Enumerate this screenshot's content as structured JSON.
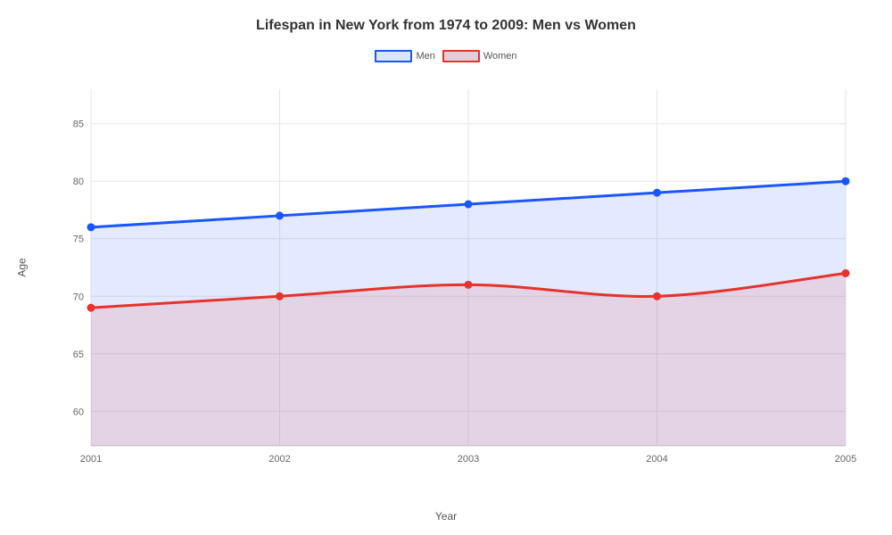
{
  "chart": {
    "type": "area-line",
    "title": "Lifespan in New York from 1974 to 2009: Men vs Women",
    "title_fontsize": 16,
    "title_fontweight": "700",
    "title_color": "#333333",
    "xlabel": "Year",
    "ylabel": "Age",
    "label_fontsize": 12,
    "label_color": "#555555",
    "background_color": "#ffffff",
    "plot_background": "#ffffff",
    "grid_color": "#e6e6e6",
    "grid_width": 1,
    "axis_border_color": "#d0d0d0",
    "tick_fontsize": 11,
    "tick_color": "#666666",
    "x": {
      "categories": [
        "2001",
        "2002",
        "2003",
        "2004",
        "2005"
      ]
    },
    "y": {
      "min": 57,
      "max": 88,
      "tick_step": 5,
      "ticks": [
        60,
        65,
        70,
        75,
        80,
        85
      ]
    },
    "legend": {
      "position": "top-center",
      "fontsize": 11,
      "items": [
        {
          "label": "Men",
          "stroke": "#1a56ff",
          "fill": "#d9e6ff"
        },
        {
          "label": "Women",
          "stroke": "#e6332c",
          "fill": "#e0cfd6"
        }
      ]
    },
    "series": [
      {
        "name": "Men",
        "values": [
          76,
          77,
          78,
          79,
          80
        ],
        "line_color": "#1a56ff",
        "line_width": 3,
        "fill_color": "#1a56ff",
        "fill_opacity": 0.12,
        "marker_color": "#1a56ff",
        "marker_size": 4.5,
        "interpolation": "cardinal"
      },
      {
        "name": "Women",
        "values": [
          69,
          70,
          71,
          70,
          72
        ],
        "line_color": "#e6332c",
        "line_width": 3,
        "fill_color": "#e6332c",
        "fill_opacity": 0.12,
        "marker_color": "#e6332c",
        "marker_size": 4.5,
        "interpolation": "cardinal"
      }
    ]
  }
}
